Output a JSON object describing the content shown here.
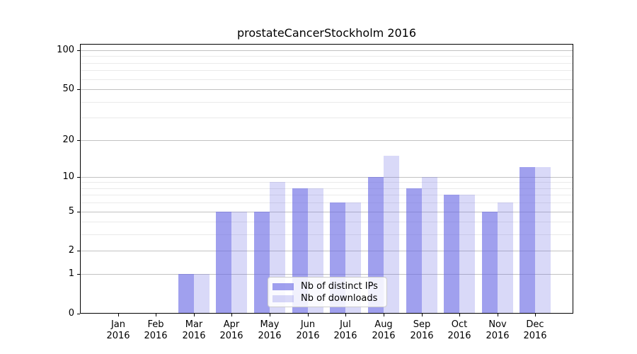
{
  "chart_data": {
    "type": "bar",
    "title": "prostateCancerStockholm 2016",
    "categories": [
      "Jan",
      "Feb",
      "Mar",
      "Apr",
      "May",
      "Jun",
      "Jul",
      "Aug",
      "Sep",
      "Oct",
      "Nov",
      "Dec"
    ],
    "x_year_label": "2016",
    "series": [
      {
        "name": "Nb of distinct IPs",
        "color": "rgba(102,102,228,0.62)",
        "values": [
          0,
          0,
          1,
          5,
          5,
          8,
          6,
          10,
          8,
          7,
          5,
          12
        ]
      },
      {
        "name": "Nb of downloads",
        "color": "rgba(102,102,228,0.25)",
        "values": [
          0,
          0,
          1,
          5,
          9,
          8,
          6,
          15,
          10,
          7,
          6,
          12
        ]
      }
    ],
    "y_axis": {
      "scale": "log1p",
      "ticks": [
        0,
        1,
        2,
        5,
        10,
        20,
        50,
        100
      ],
      "minor_gridlines": [
        3,
        4,
        6,
        7,
        8,
        9,
        30,
        40,
        60,
        70,
        80,
        90
      ],
      "ylim": [
        0,
        100
      ]
    },
    "grid": {
      "major_color": "#c2c2c2",
      "minor_color": "#eaeaea"
    },
    "legend": {
      "position": "lower center"
    }
  }
}
